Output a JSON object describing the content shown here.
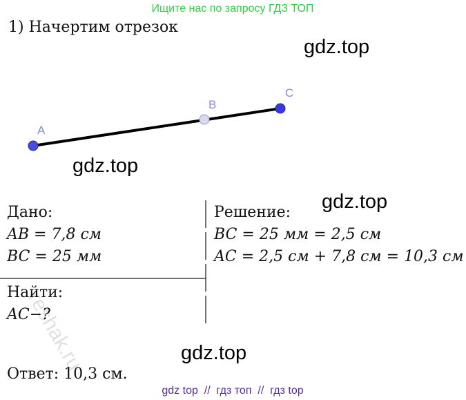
{
  "header": {
    "promo": "Ищите нас по запросу ГДЗ ТОП"
  },
  "task": {
    "title": "1) Начертим отрезок"
  },
  "figure": {
    "points": [
      {
        "label": "A"
      },
      {
        "label": "B"
      },
      {
        "label": "C"
      }
    ]
  },
  "given": {
    "title": "Дано:",
    "lines": [
      "AB = 7,8 см",
      "BC = 25 мм"
    ]
  },
  "find": {
    "title": "Найти:",
    "lines": [
      "AC−?"
    ]
  },
  "solution": {
    "title": "Решение:",
    "lines": [
      "BC = 25 мм = 2,5 см",
      "AC = 2,5 см + 7,8 см = 10,3 см"
    ]
  },
  "answer": "Ответ: 10,3 см.",
  "watermarks": [
    "gdz.top",
    "gdz.top",
    "gdz.top",
    "gdz.top",
    "reshak.ru"
  ],
  "footer": "gdz top  //  гдз топ  //  гдз top"
}
